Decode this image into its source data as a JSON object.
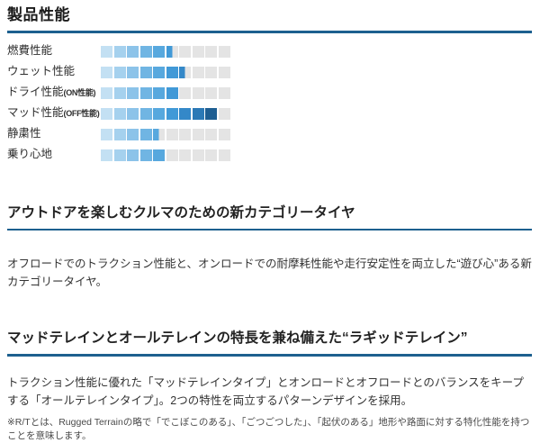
{
  "page": {
    "title": "製品性能",
    "accent_color": "#1d608f"
  },
  "bar": {
    "total": 10,
    "segment_colors": [
      "#c3e0f3",
      "#a5d1ee",
      "#8cc3e9",
      "#70b5e3",
      "#57a8de",
      "#4199d7",
      "#3488c8",
      "#2b79b6",
      "#1e5e92",
      "#17517f"
    ],
    "empty_color": "#e4e4e4"
  },
  "chart_data": {
    "type": "bar",
    "title": "製品性能",
    "categories": [
      "燃費性能",
      "ウェット性能",
      "ドライ性能(ON性能)",
      "マッド性能(OFF性能)",
      "静粛性",
      "乗り心地"
    ],
    "values": [
      5.5,
      6.5,
      6,
      9,
      4.5,
      5
    ],
    "xlabel": "",
    "ylabel": "",
    "xlim": [
      0,
      10
    ]
  },
  "ratings": [
    {
      "label": "燃費性能",
      "sub": "",
      "value": 5.5
    },
    {
      "label": "ウェット性能",
      "sub": "",
      "value": 6.5
    },
    {
      "label": "ドライ性能",
      "sub": "(ON性能)",
      "value": 6
    },
    {
      "label": "マッド性能",
      "sub": "(OFF性能)",
      "value": 9
    },
    {
      "label": "静粛性",
      "sub": "",
      "value": 4.5
    },
    {
      "label": "乗り心地",
      "sub": "",
      "value": 5
    }
  ],
  "sections": [
    {
      "heading": "アウトドアを楽しむクルマのための新カテゴリータイヤ",
      "body": "オフロードでのトラクション性能と、オンロードでの耐摩耗性能や走行安定性を両立した“遊び心”ある新カテゴリータイヤ。"
    },
    {
      "heading": "マッドテレインとオールテレインの特長を兼ね備えた“ラギッドテレイン”",
      "body": "トラクション性能に優れた「マッドテレインタイプ」とオンロードとオフロードとのバランスをキープする「オールテレインタイプ」。2つの特性を両立するパターンデザインを採用。"
    }
  ],
  "footnote": "※R/Tとは、Rugged Terrainの略で「でこぼこのある」、「ごつごつした」、「起伏のある」地形や路面に対する特化性能を持つことを意味します。"
}
